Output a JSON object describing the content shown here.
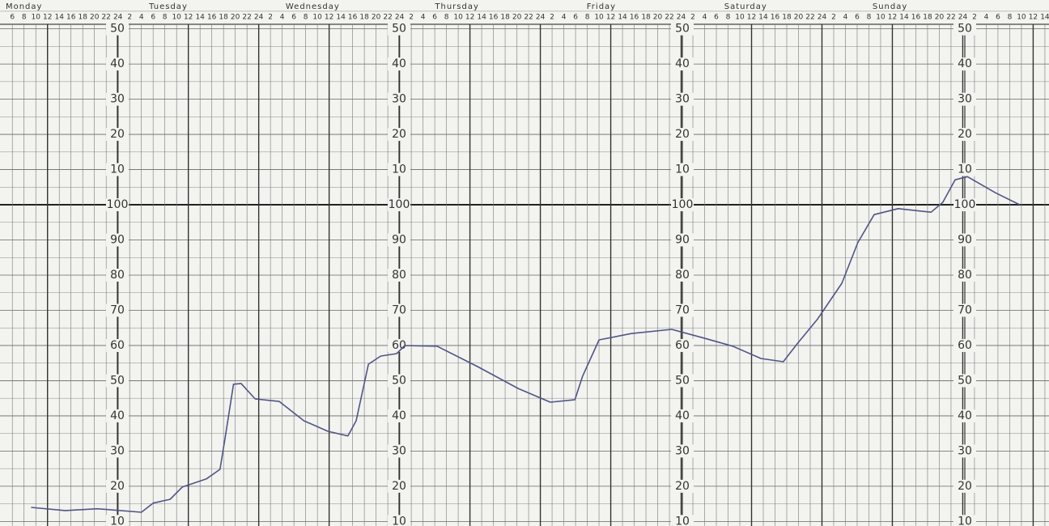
{
  "chart_data": {
    "type": "line",
    "days": [
      "Monday",
      "Tuesday",
      "Wednesday",
      "Thursday",
      "Friday",
      "Saturday",
      "Sunday"
    ],
    "x": [
      9.2,
      15,
      20.5,
      28,
      30,
      32.9,
      35,
      39.1,
      41.4,
      42.3,
      43.7,
      45,
      47.4,
      51.5,
      55.7,
      59.8,
      63.2,
      64.6,
      66.7,
      68.8,
      71.5,
      72.9,
      78.4,
      85.3,
      92.2,
      97.7,
      101.9,
      103.2,
      106,
      111.5,
      118.4,
      123.9,
      128.8,
      133.6,
      137.4,
      139.8,
      143.2,
      147.4,
      150.1,
      152.9,
      157,
      162.6,
      164.6,
      166.7,
      168.8,
      173.6,
      177.7
    ],
    "series": [
      {
        "color": "#4f5586",
        "values": [
          14.0,
          13.1,
          13.6,
          12.6,
          15.2,
          16.3,
          19.8,
          22.1,
          24.8,
          34,
          49,
          49.2,
          44.8,
          44.1,
          38.6,
          35.6,
          34.3,
          38.6,
          54.7,
          57.0,
          57.7,
          60,
          59.8,
          54,
          47.8,
          43.9,
          44.6,
          51.3,
          61.6,
          63.4,
          64.6,
          62.1,
          59.8,
          56.3,
          55.4,
          60.5,
          67.4,
          77.7,
          89.2,
          97.2,
          98.9,
          97.9,
          100.7,
          107.1,
          108,
          103.4,
          100
        ]
      }
    ],
    "xlim": [
      3.9,
      182.7
    ],
    "xticks": [
      6,
      8,
      10,
      12,
      14,
      16,
      18,
      20,
      22,
      24,
      {
        "value": 26,
        "label": "2"
      },
      {
        "value": 28,
        "label": "4"
      },
      {
        "value": 30,
        "label": "6"
      },
      {
        "value": 32,
        "label": "8"
      },
      {
        "value": 34,
        "label": "10"
      },
      {
        "value": 36,
        "label": "12"
      },
      {
        "value": 38,
        "label": "14"
      },
      {
        "value": 40,
        "label": "16"
      },
      {
        "value": 42,
        "label": "18"
      },
      {
        "value": 44,
        "label": "20"
      },
      {
        "value": 46,
        "label": "22"
      },
      {
        "value": 48,
        "label": "24"
      },
      {
        "value": 50,
        "label": "2"
      },
      {
        "value": 52,
        "label": "4"
      },
      {
        "value": 54,
        "label": "6"
      },
      {
        "value": 56,
        "label": "8"
      },
      {
        "value": 58,
        "label": "10"
      },
      {
        "value": 60,
        "label": "12"
      },
      {
        "value": 62,
        "label": "14"
      },
      {
        "value": 64,
        "label": "16"
      },
      {
        "value": 66,
        "label": "18"
      },
      {
        "value": 68,
        "label": "20"
      },
      {
        "value": 70,
        "label": "22"
      },
      {
        "value": 72,
        "label": "24"
      },
      {
        "value": 74,
        "label": "2"
      },
      {
        "value": 76,
        "label": "4"
      },
      {
        "value": 78,
        "label": "6"
      },
      {
        "value": 80,
        "label": "8"
      },
      {
        "value": 82,
        "label": "10"
      },
      {
        "value": 84,
        "label": "12"
      },
      {
        "value": 86,
        "label": "14"
      },
      {
        "value": 88,
        "label": "16"
      },
      {
        "value": 90,
        "label": "18"
      },
      {
        "value": 92,
        "label": "20"
      },
      {
        "value": 94,
        "label": "22"
      },
      {
        "value": 96,
        "label": "24"
      },
      {
        "value": 98,
        "label": "2"
      },
      {
        "value": 100,
        "label": "4"
      },
      {
        "value": 102,
        "label": "6"
      },
      {
        "value": 104,
        "label": "8"
      },
      {
        "value": 106,
        "label": "10"
      },
      {
        "value": 108,
        "label": "12"
      },
      {
        "value": 110,
        "label": "14"
      },
      {
        "value": 112,
        "label": "16"
      },
      {
        "value": 114,
        "label": "18"
      },
      {
        "value": 116,
        "label": "20"
      },
      {
        "value": 118,
        "label": "22"
      },
      {
        "value": 120,
        "label": "24"
      },
      {
        "value": 122,
        "label": "2"
      },
      {
        "value": 124,
        "label": "4"
      },
      {
        "value": 126,
        "label": "6"
      },
      {
        "value": 128,
        "label": "8"
      },
      {
        "value": 130,
        "label": "10"
      },
      {
        "value": 132,
        "label": "12"
      },
      {
        "value": 134,
        "label": "14"
      },
      {
        "value": 136,
        "label": "16"
      },
      {
        "value": 138,
        "label": "18"
      },
      {
        "value": 140,
        "label": "20"
      },
      {
        "value": 142,
        "label": "22"
      },
      {
        "value": 144,
        "label": "24"
      },
      {
        "value": 146,
        "label": "2"
      },
      {
        "value": 148,
        "label": "4"
      },
      {
        "value": 150,
        "label": "6"
      },
      {
        "value": 152,
        "label": "8"
      },
      {
        "value": 154,
        "label": "10"
      },
      {
        "value": 156,
        "label": "12"
      },
      {
        "value": 158,
        "label": "14"
      },
      {
        "value": 160,
        "label": "16"
      },
      {
        "value": 162,
        "label": "18"
      },
      {
        "value": 164,
        "label": "20"
      },
      {
        "value": 166,
        "label": "22"
      },
      {
        "value": 168,
        "label": "24"
      },
      {
        "value": 170,
        "label": "2"
      },
      {
        "value": 172,
        "label": "4"
      },
      {
        "value": 174,
        "label": "6"
      },
      {
        "value": 176,
        "label": "8"
      },
      {
        "value": 178,
        "label": "10"
      },
      {
        "value": 180,
        "label": "12"
      },
      {
        "value": 182,
        "label": "14"
      }
    ],
    "ylim": [
      8.7,
      151.3
    ],
    "yticks": [
      10,
      20,
      30,
      40,
      50,
      60,
      70,
      80,
      90,
      100,
      {
        "value": 110,
        "label": "10"
      },
      {
        "value": 120,
        "label": "20"
      },
      {
        "value": 130,
        "label": "30"
      },
      {
        "value": 140,
        "label": "40"
      },
      {
        "value": 150,
        "label": "50"
      }
    ],
    "ymajor": 100,
    "grid": true
  }
}
